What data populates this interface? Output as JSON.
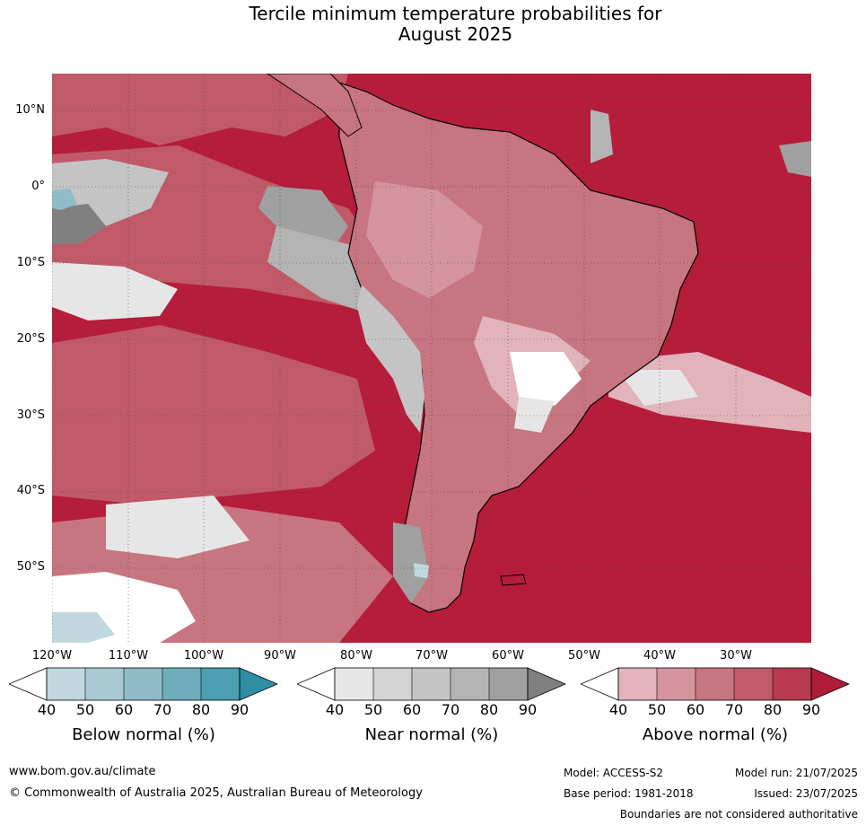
{
  "title_line1": "Tercile minimum temperature probabilities for",
  "title_line2": "August 2025",
  "lat_labels": [
    "10°N",
    "0°",
    "10°S",
    "20°S",
    "30°S",
    "40°S",
    "50°S"
  ],
  "lon_labels": [
    "120°W",
    "110°W",
    "100°W",
    "90°W",
    "80°W",
    "70°W",
    "60°W",
    "50°W",
    "40°W",
    "30°W"
  ],
  "colorbars": [
    {
      "title": "Below normal (%)",
      "ticks": [
        "40",
        "50",
        "60",
        "70",
        "80",
        "90"
      ],
      "colors": [
        "#ffffff",
        "#c0d8de",
        "#a9cad2",
        "#8fbcc8",
        "#6fadbd",
        "#4aa0b2",
        "#2f8ea3"
      ]
    },
    {
      "title": "Near normal (%)",
      "ticks": [
        "40",
        "50",
        "60",
        "70",
        "80",
        "90"
      ],
      "colors": [
        "#ffffff",
        "#e6e6e6",
        "#d4d4d4",
        "#c4c4c4",
        "#b4b4b4",
        "#a0a0a0",
        "#808080"
      ]
    },
    {
      "title": "Above normal (%)",
      "ticks": [
        "40",
        "50",
        "60",
        "70",
        "80",
        "90"
      ],
      "colors": [
        "#ffffff",
        "#e0b4ba",
        "#d4949e",
        "#c77580",
        "#c05a69",
        "#b83a4e",
        "#b01c38"
      ]
    }
  ],
  "footer": {
    "website": "www.bom.gov.au/climate",
    "copyright": "© Commonwealth of Australia 2025, Australian Bureau of Meteorology",
    "model": "Model: ACCESS-S2",
    "base_period": "Base period: 1981-2018",
    "model_run": "Model run: 21/07/2025",
    "issued": "Issued: 23/07/2025",
    "disclaimer": "Boundaries are not considered authoritative"
  }
}
